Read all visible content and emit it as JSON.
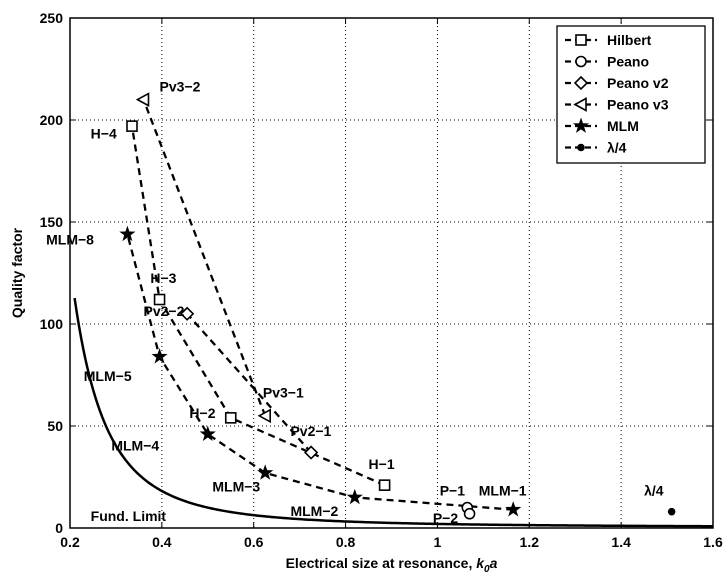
{
  "chart_data": {
    "type": "scatter",
    "xlabel": "Electrical size at resonance, ",
    "xlabel_k": "k",
    "xlabel_sub": "0",
    "xlabel_a": "a",
    "ylabel": "Quality factor",
    "xlim": [
      0.2,
      1.6
    ],
    "ylim": [
      0,
      250
    ],
    "xticks": [
      0.2,
      0.4,
      0.6,
      0.8,
      1.0,
      1.2,
      1.4,
      1.6
    ],
    "xtick_labels": [
      "0.2",
      "0.4",
      "0.6",
      "0.8",
      "1",
      "1.2",
      "1.4",
      "1.6"
    ],
    "yticks": [
      0,
      50,
      100,
      150,
      200,
      250
    ],
    "ytick_labels": [
      "0",
      "50",
      "100",
      "150",
      "200",
      "250"
    ],
    "grid": true,
    "legend_position": "top-right",
    "series": [
      {
        "name": "Hilbert",
        "marker": "square",
        "x": [
          0.885,
          0.55,
          0.395,
          0.335
        ],
        "y": [
          21,
          54,
          112,
          197
        ]
      },
      {
        "name": "Peano",
        "marker": "circle",
        "x": [
          1.065,
          1.07
        ],
        "y": [
          10,
          7
        ]
      },
      {
        "name": "Peano v2",
        "marker": "diamond",
        "x": [
          0.725,
          0.455
        ],
        "y": [
          37,
          105
        ]
      },
      {
        "name": "Peano v3",
        "marker": "triangle-left",
        "x": [
          0.625,
          0.36
        ],
        "y": [
          55,
          210
        ]
      },
      {
        "name": "MLM",
        "marker": "star",
        "x": [
          1.165,
          0.82,
          0.625,
          0.5,
          0.395,
          0.325
        ],
        "y": [
          9,
          15,
          27,
          46,
          84,
          144
        ]
      },
      {
        "name": "λ/4",
        "marker": "dot",
        "x": [
          1.51
        ],
        "y": [
          8
        ]
      }
    ],
    "fundamental_limit": {
      "label": "Fund. Limit",
      "x_start": 0.21,
      "x_end": 1.6
    },
    "annotations": [
      {
        "text": "Pv3−2",
        "x": 0.395,
        "y": 214
      },
      {
        "text": "H−4",
        "x": 0.245,
        "y": 191
      },
      {
        "text": "MLM−8",
        "x": 0.148,
        "y": 139
      },
      {
        "text": "H−3",
        "x": 0.375,
        "y": 120
      },
      {
        "text": "Pv2−2",
        "x": 0.36,
        "y": 104
      },
      {
        "text": "MLM−5",
        "x": 0.23,
        "y": 72
      },
      {
        "text": "H−2",
        "x": 0.46,
        "y": 54
      },
      {
        "text": "MLM−4",
        "x": 0.29,
        "y": 38
      },
      {
        "text": "Pv3−1",
        "x": 0.62,
        "y": 64
      },
      {
        "text": "Pv2−1",
        "x": 0.68,
        "y": 45
      },
      {
        "text": "MLM−3",
        "x": 0.51,
        "y": 18
      },
      {
        "text": "H−1",
        "x": 0.85,
        "y": 29
      },
      {
        "text": "MLM−2",
        "x": 0.68,
        "y": 6
      },
      {
        "text": "P−1",
        "x": 1.005,
        "y": 16
      },
      {
        "text": "P−2",
        "x": 0.99,
        "y": 2.5
      },
      {
        "text": "MLM−1",
        "x": 1.09,
        "y": 16
      },
      {
        "text": "λ/4",
        "x": 1.45,
        "y": 16
      }
    ]
  }
}
